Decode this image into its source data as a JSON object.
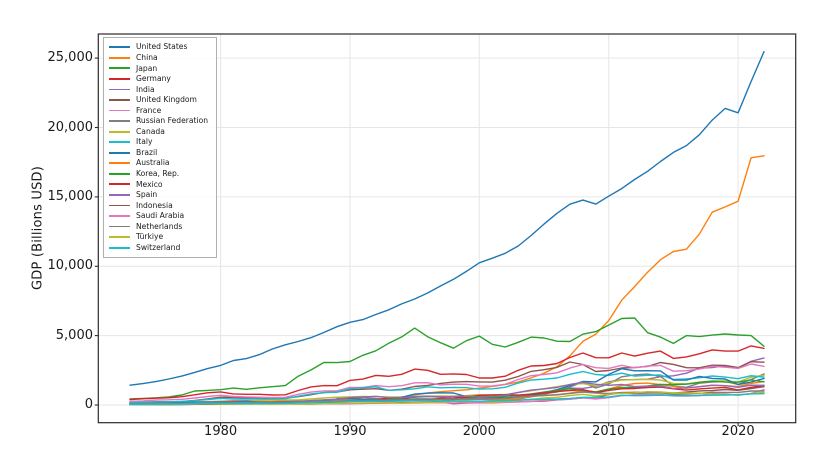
{
  "chart_data": {
    "type": "line",
    "title": "",
    "xlabel": "",
    "ylabel": "GDP (Billions USD)",
    "grid": true,
    "legend_position": "upper left",
    "xlim": [
      1970.55,
      2024.45
    ],
    "ylim": [
      -1275,
      26740
    ],
    "x_ticks": [
      1980,
      1990,
      2000,
      2010,
      2020
    ],
    "y_ticks": [
      0,
      5000,
      10000,
      15000,
      20000,
      25000
    ],
    "y_tick_labels": [
      "0",
      "5,000",
      "10,000",
      "15,000",
      "20,000",
      "25,000"
    ],
    "style": {
      "grid_color": "#e6e6e6",
      "spine_color": "#2b2b2b",
      "tick_color": "#2b2b2b",
      "line_width": 1.4
    },
    "x": [
      1973,
      1974,
      1975,
      1976,
      1977,
      1978,
      1979,
      1980,
      1981,
      1982,
      1983,
      1984,
      1985,
      1986,
      1987,
      1988,
      1989,
      1990,
      1991,
      1992,
      1993,
      1994,
      1995,
      1996,
      1997,
      1998,
      1999,
      2000,
      2001,
      2002,
      2003,
      2004,
      2005,
      2006,
      2007,
      2008,
      2009,
      2010,
      2011,
      2012,
      2013,
      2014,
      2015,
      2016,
      2017,
      2018,
      2019,
      2020,
      2021,
      2022
    ],
    "series": [
      {
        "name": "United States",
        "color": "#1f77b4",
        "values": [
          1425,
          1545,
          1685,
          1873,
          2082,
          2352,
          2627,
          2857,
          3207,
          3344,
          3634,
          4038,
          4339,
          4580,
          4855,
          5236,
          5642,
          5963,
          6158,
          6520,
          6859,
          7287,
          7640,
          8073,
          8578,
          9063,
          9631,
          10251,
          10582,
          10936,
          11458,
          12214,
          13037,
          13815,
          14474,
          14770,
          14478,
          15049,
          15600,
          16254,
          16843,
          17551,
          18206,
          18695,
          19477,
          20533,
          21381,
          21060,
          23315,
          25463
        ]
      },
      {
        "name": "China",
        "color": "#ff7f0e",
        "values": [
          138,
          144,
          163,
          154,
          175,
          150,
          178,
          191,
          196,
          205,
          231,
          260,
          310,
          301,
          273,
          312,
          348,
          361,
          383,
          427,
          445,
          564,
          734,
          864,
          962,
          1029,
          1094,
          1211,
          1339,
          1471,
          1660,
          1955,
          2286,
          2752,
          3550,
          4594,
          5102,
          6087,
          7552,
          8532,
          9570,
          10476,
          11062,
          11233,
          12310,
          13895,
          14280,
          14688,
          17820,
          17963
        ]
      },
      {
        "name": "Japan",
        "color": "#2ca02c",
        "values": [
          432,
          479,
          521,
          586,
          721,
          1013,
          1055,
          1105,
          1218,
          1134,
          1243,
          1318,
          1399,
          2078,
          2533,
          3071,
          3054,
          3133,
          3584,
          3908,
          4454,
          4907,
          5546,
          4923,
          4492,
          4098,
          4636,
          4968,
          4374,
          4182,
          4519,
          4893,
          4831,
          4601,
          4579,
          5106,
          5289,
          5759,
          6233,
          6272,
          5212,
          4897,
          4444,
          5004,
          4931,
          5041,
          5118,
          5048,
          5006,
          4231
        ]
      },
      {
        "name": "Germany",
        "color": "#d62728",
        "values": [
          399,
          446,
          490,
          519,
          599,
          738,
          880,
          947,
          800,
          771,
          770,
          725,
          734,
          1047,
          1307,
          1402,
          1394,
          1772,
          1869,
          2132,
          2071,
          2210,
          2591,
          2503,
          2214,
          2243,
          2199,
          1948,
          1950,
          2079,
          2501,
          2814,
          2846,
          2994,
          3425,
          3745,
          3411,
          3399,
          3749,
          3527,
          3733,
          3889,
          3357,
          3469,
          3690,
          3974,
          3889,
          3887,
          4260,
          4082
        ]
      },
      {
        "name": "India",
        "color": "#9467bd",
        "values": [
          85,
          99,
          98,
          102,
          120,
          137,
          152,
          186,
          193,
          200,
          218,
          212,
          232,
          248,
          279,
          296,
          296,
          321,
          270,
          288,
          279,
          327,
          360,
          393,
          416,
          421,
          459,
          468,
          485,
          515,
          608,
          709,
          820,
          940,
          1217,
          1199,
          1342,
          1676,
          1823,
          1828,
          1857,
          2039,
          2104,
          2295,
          2651,
          2703,
          2835,
          2672,
          3150,
          3385
        ]
      },
      {
        "name": "United Kingdom",
        "color": "#8c564b",
        "values": [
          192,
          206,
          241,
          232,
          263,
          335,
          439,
          564,
          540,
          515,
          489,
          461,
          489,
          601,
          745,
          910,
          927,
          1093,
          1142,
          1179,
          1061,
          1140,
          1335,
          1416,
          1558,
          1652,
          1687,
          1665,
          1648,
          1785,
          2054,
          2421,
          2543,
          2713,
          3101,
          2922,
          2412,
          2485,
          2664,
          2707,
          2784,
          3065,
          2928,
          2689,
          2680,
          2871,
          2851,
          2697,
          3123,
          3089
        ]
      },
      {
        "name": "France",
        "color": "#e377c2",
        "values": [
          265,
          286,
          362,
          374,
          410,
          506,
          613,
          701,
          616,
          584,
          563,
          531,
          553,
          771,
          934,
          1018,
          1025,
          1269,
          1269,
          1401,
          1322,
          1394,
          1601,
          1605,
          1452,
          1503,
          1492,
          1362,
          1377,
          1494,
          1840,
          2115,
          2196,
          2320,
          2657,
          2918,
          2690,
          2642,
          2861,
          2683,
          2811,
          2852,
          2438,
          2471,
          2588,
          2790,
          2728,
          2639,
          2958,
          2783
        ]
      },
      {
        "name": "Russian Federation",
        "color": "#7f7f7f",
        "values": [
          null,
          null,
          null,
          null,
          null,
          null,
          null,
          null,
          null,
          null,
          null,
          null,
          null,
          null,
          null,
          null,
          507,
          517,
          518,
          460,
          435,
          395,
          396,
          392,
          405,
          271,
          196,
          260,
          307,
          345,
          430,
          591,
          764,
          990,
          1300,
          1661,
          1223,
          1525,
          2032,
          2170,
          2231,
          2059,
          1363,
          1277,
          1574,
          1657,
          1693,
          1489,
          1837,
          2240
        ]
      },
      {
        "name": "Canada",
        "color": "#bcbd22",
        "values": [
          131,
          160,
          174,
          207,
          212,
          219,
          244,
          274,
          307,
          314,
          341,
          355,
          365,
          378,
          432,
          507,
          565,
          594,
          612,
          594,
          579,
          578,
          606,
          630,
          654,
          633,
          678,
          745,
          738,
          760,
          896,
          1026,
          1173,
          1319,
          1469,
          1552,
          1374,
          1617,
          1793,
          1828,
          1846,
          1805,
          1556,
          1528,
          1649,
          1725,
          1743,
          1655,
          2001,
          2140
        ]
      },
      {
        "name": "Italy",
        "color": "#17becf",
        "values": [
          175,
          199,
          227,
          224,
          257,
          314,
          393,
          477,
          430,
          427,
          443,
          437,
          452,
          638,
          798,
          889,
          925,
          1177,
          1242,
          1315,
          1061,
          1095,
          1171,
          1309,
          1239,
          1266,
          1249,
          1147,
          1168,
          1275,
          1577,
          1806,
          1857,
          1949,
          2213,
          2408,
          2199,
          2136,
          2294,
          2086,
          2141,
          2162,
          1836,
          1877,
          1961,
          2092,
          2011,
          1897,
          2115,
          2010
        ]
      },
      {
        "name": "Brazil",
        "color": "#1f77b4",
        "values": [
          79,
          105,
          124,
          153,
          176,
          201,
          225,
          235,
          264,
          282,
          203,
          209,
          223,
          268,
          294,
          330,
          426,
          462,
          406,
          390,
          438,
          558,
          786,
          850,
          883,
          864,
          600,
          655,
          560,
          508,
          558,
          669,
          891,
          1107,
          1397,
          1696,
          1667,
          2209,
          2616,
          2465,
          2473,
          2456,
          1802,
          1796,
          2063,
          1917,
          1873,
          1476,
          1649,
          1920
        ]
      },
      {
        "name": "Australia",
        "color": "#ff7f0e",
        "values": [
          64,
          89,
          97,
          105,
          110,
          118,
          135,
          150,
          177,
          194,
          177,
          193,
          180,
          182,
          189,
          235,
          299,
          311,
          326,
          325,
          312,
          323,
          368,
          401,
          426,
          399,
          389,
          416,
          379,
          395,
          467,
          613,
          694,
          747,
          854,
          1055,
          928,
          1146,
          1398,
          1547,
          1577,
          1468,
          1351,
          1208,
          1330,
          1428,
          1392,
          1327,
          1559,
          1693
        ]
      },
      {
        "name": "Korea, Rep.",
        "color": "#2ca02c",
        "values": [
          14,
          19,
          21,
          29,
          37,
          51,
          66,
          65,
          72,
          77,
          87,
          97,
          101,
          116,
          146,
          197,
          246,
          283,
          330,
          355,
          392,
          463,
          566,
          610,
          569,
          383,
          497,
          576,
          547,
          627,
          702,
          793,
          934,
          1053,
          1172,
          1047,
          944,
          1144,
          1253,
          1278,
          1370,
          1484,
          1466,
          1500,
          1624,
          1725,
          1651,
          1644,
          1811,
          1674
        ]
      },
      {
        "name": "Mexico",
        "color": "#d62728",
        "values": [
          55,
          72,
          88,
          89,
          82,
          102,
          135,
          194,
          250,
          173,
          149,
          176,
          184,
          129,
          140,
          183,
          223,
          261,
          313,
          363,
          500,
          527,
          344,
          397,
          481,
          502,
          580,
          684,
          725,
          742,
          713,
          770,
          866,
          966,
          1043,
          1101,
          895,
          1051,
          1171,
          1187,
          1262,
          1298,
          1171,
          1078,
          1158,
          1222,
          1269,
          1090,
          1273,
          1414
        ]
      },
      {
        "name": "Spain",
        "color": "#9467bd",
        "values": [
          83,
          101,
          116,
          120,
          133,
          156,
          199,
          222,
          199,
          193,
          170,
          171,
          180,
          250,
          318,
          375,
          413,
          536,
          577,
          630,
          524,
          529,
          615,
          642,
          590,
          618,
          634,
          598,
          627,
          706,
          907,
          1071,
          1159,
          1265,
          1481,
          1635,
          1491,
          1423,
          1481,
          1324,
          1355,
          1371,
          1196,
          1233,
          1313,
          1422,
          1394,
          1277,
          1427,
          1418
        ]
      },
      {
        "name": "Indonesia",
        "color": "#8c564b",
        "values": [
          16,
          26,
          30,
          37,
          46,
          52,
          51,
          72,
          86,
          90,
          81,
          85,
          85,
          80,
          75,
          84,
          94,
          106,
          117,
          128,
          158,
          177,
          202,
          227,
          216,
          95,
          140,
          165,
          160,
          196,
          235,
          257,
          286,
          365,
          432,
          510,
          540,
          755,
          893,
          918,
          913,
          891,
          861,
          932,
          1016,
          1042,
          1119,
          1059,
          1186,
          1319
        ]
      },
      {
        "name": "Saudi Arabia",
        "color": "#e377c2",
        "values": [
          15,
          45,
          46,
          64,
          74,
          80,
          111,
          164,
          184,
          153,
          129,
          119,
          104,
          87,
          86,
          88,
          95,
          117,
          132,
          136,
          132,
          135,
          143,
          158,
          165,
          146,
          161,
          190,
          184,
          189,
          215,
          259,
          329,
          377,
          415,
          520,
          430,
          528,
          671,
          736,
          747,
          756,
          654,
          645,
          689,
          817,
          804,
          703,
          834,
          1108
        ]
      },
      {
        "name": "Netherlands",
        "color": "#7f7f7f",
        "values": [
          72,
          86,
          100,
          109,
          127,
          155,
          177,
          195,
          164,
          159,
          153,
          143,
          143,
          200,
          245,
          262,
          258,
          318,
          325,
          360,
          350,
          374,
          446,
          444,
          412,
          433,
          442,
          416,
          428,
          465,
          571,
          650,
          678,
          726,
          839,
          936,
          857,
          836,
          893,
          828,
          866,
          879,
          765,
          783,
          831,
          914,
          910,
          909,
          1012,
          1009
        ]
      },
      {
        "name": "Türkiye",
        "color": "#bcbd22",
        "values": [
          27,
          37,
          45,
          51,
          58,
          65,
          89,
          69,
          71,
          65,
          62,
          60,
          67,
          76,
          87,
          91,
          108,
          151,
          151,
          159,
          180,
          131,
          169,
          181,
          190,
          276,
          256,
          274,
          201,
          240,
          315,
          409,
          506,
          557,
          682,
          770,
          649,
          777,
          838,
          880,
          958,
          939,
          864,
          869,
          859,
          780,
          760,
          720,
          819,
          906
        ]
      },
      {
        "name": "Switzerland",
        "color": "#17becf",
        "values": [
          46,
          52,
          61,
          66,
          71,
          94,
          108,
          119,
          109,
          111,
          111,
          105,
          107,
          152,
          189,
          209,
          204,
          258,
          261,
          267,
          263,
          291,
          342,
          330,
          288,
          295,
          289,
          272,
          279,
          301,
          352,
          394,
          408,
          430,
          479,
          554,
          541,
          583,
          699,
          668,
          688,
          709,
          680,
          671,
          680,
          706,
          721,
          742,
          800,
          818
        ]
      }
    ]
  }
}
